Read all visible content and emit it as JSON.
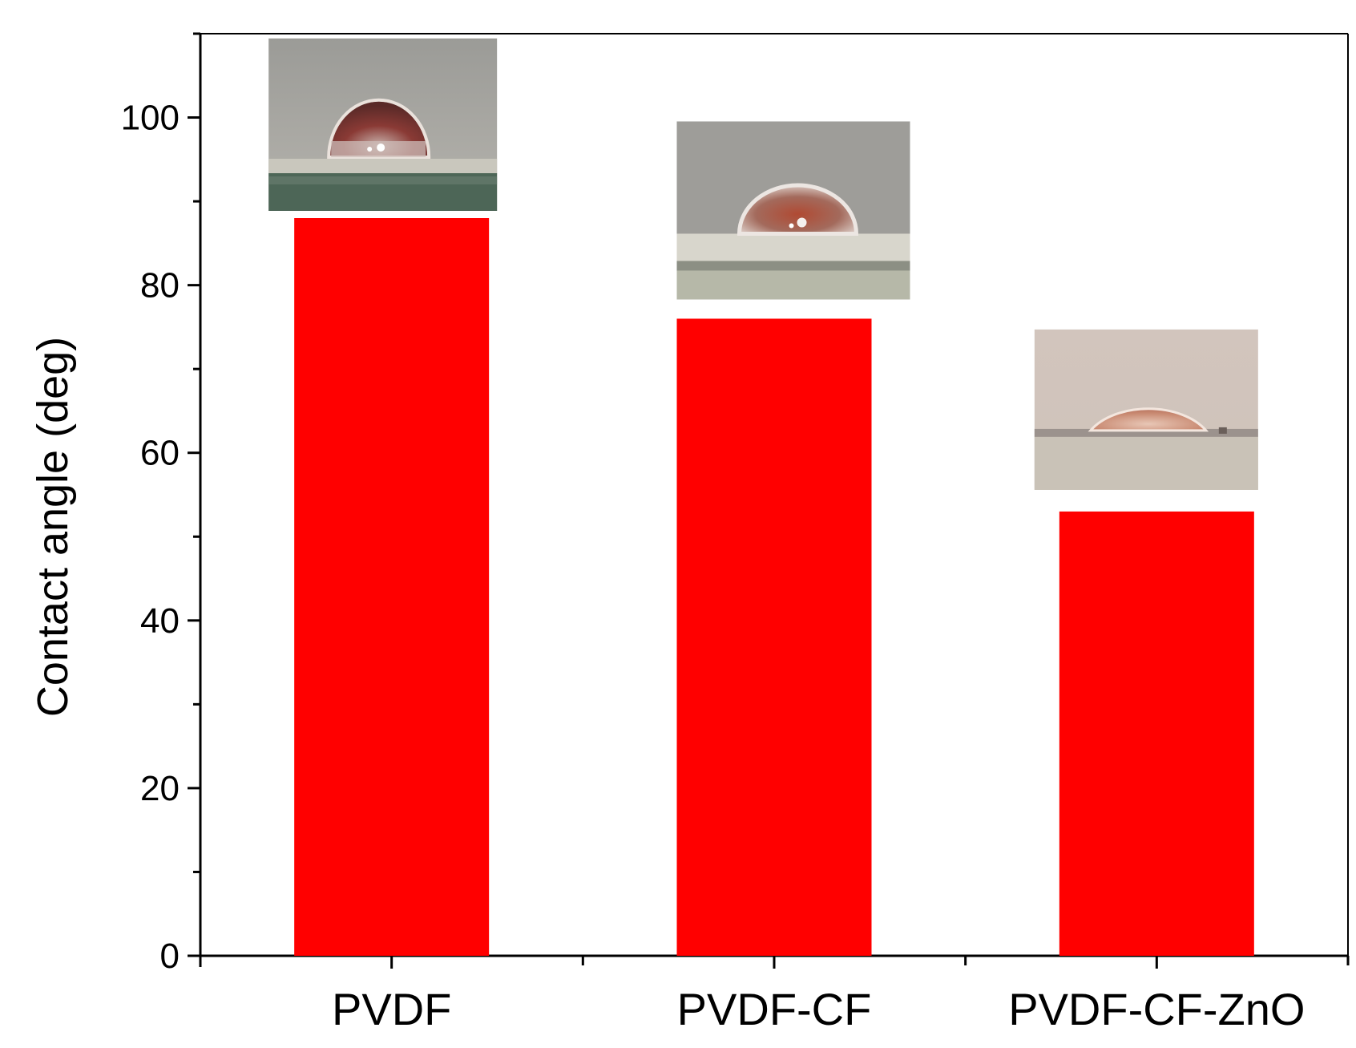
{
  "chart_data": {
    "type": "bar",
    "title": "",
    "xlabel": "",
    "ylabel": "Contact angle (deg)",
    "categories": [
      "PVDF",
      "PVDF-CF",
      "PVDF-CF-ZnO"
    ],
    "values": [
      88,
      76,
      53
    ],
    "ylim": [
      0,
      110
    ],
    "yticks": [
      0,
      20,
      40,
      60,
      80,
      100
    ],
    "grid": false,
    "legend": "none",
    "bar_color": "#ff0000",
    "insets": [
      {
        "category": "PVDF",
        "description": "droplet-photo-high-contact-angle"
      },
      {
        "category": "PVDF-CF",
        "description": "droplet-photo-medium-contact-angle"
      },
      {
        "category": "PVDF-CF-ZnO",
        "description": "droplet-photo-low-contact-angle"
      }
    ]
  }
}
